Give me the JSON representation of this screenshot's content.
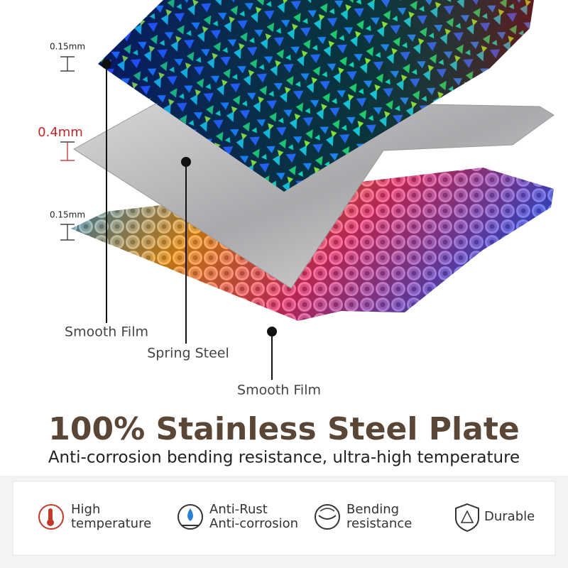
{
  "layers": [
    {
      "thickness": "0.15mm",
      "label": "Smooth Film"
    },
    {
      "thickness": "0.4mm",
      "label": "Spring Steel"
    },
    {
      "thickness": "0.15mm",
      "label": "Smooth Film"
    }
  ],
  "header": {
    "title": "100% Stainless Steel Plate",
    "subtitle": "Anti-corrosion bending resistance, ultra-high temperature"
  },
  "features": [
    {
      "lines": [
        "High",
        "temperature"
      ]
    },
    {
      "lines": [
        "Anti-Rust",
        "Anti-corrosion"
      ]
    },
    {
      "lines": [
        "Bending",
        "resistance"
      ]
    },
    {
      "lines": [
        "Durable"
      ]
    }
  ]
}
